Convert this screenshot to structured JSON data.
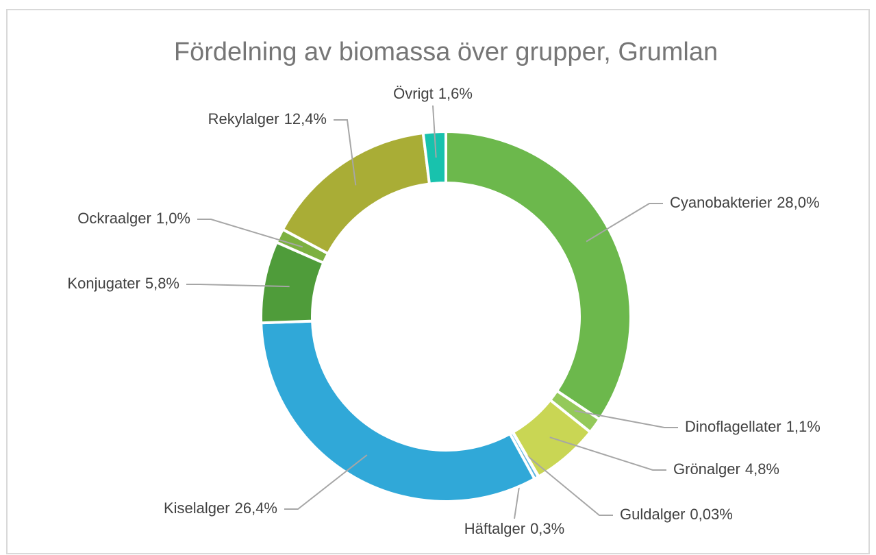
{
  "chart_data": {
    "type": "donut",
    "title": "Fördelning av biomassa över grupper, Grumlan",
    "categories": [
      "Cyanobakterier",
      "Dinoflagellater",
      "Grönalger",
      "Guldalger",
      "Häftalger",
      "Kiselalger",
      "Konjugater",
      "Ockraalger",
      "Rekylalger",
      "Övrigt"
    ],
    "values": [
      28.0,
      1.1,
      4.8,
      0.03,
      0.3,
      26.4,
      5.8,
      1.0,
      12.4,
      1.6
    ],
    "value_labels": [
      "28,0%",
      "1,1%",
      "4,8%",
      "0,03%",
      "0,3%",
      "26,4%",
      "5,8%",
      "1,0%",
      "12,4%",
      "1,6%"
    ],
    "colors": [
      "#6cb84c",
      "#94c95a",
      "#c9d654",
      "#d6e6f2",
      "#5ab4e0",
      "#30a8d8",
      "#4f9c3a",
      "#7cb040",
      "#a9ad36",
      "#18c2ad"
    ]
  }
}
